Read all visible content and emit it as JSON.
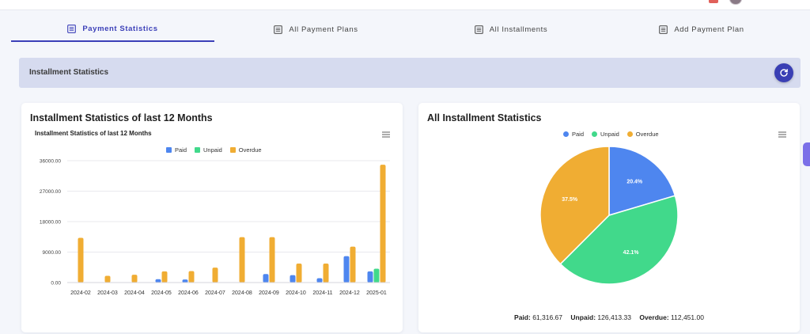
{
  "tabs": [
    {
      "label": "Payment Statistics",
      "active": true,
      "icon": "list-icon"
    },
    {
      "label": "All Payment Plans",
      "active": false,
      "icon": "list-icon"
    },
    {
      "label": "All Installments",
      "active": false,
      "icon": "list-icon"
    },
    {
      "label": "Add Payment Plan",
      "active": false,
      "icon": "list-icon"
    }
  ],
  "section": {
    "title": "Installment Statistics",
    "refresh_icon": "refresh-icon"
  },
  "bar_card": {
    "title": "Installment Statistics of last 12 Months"
  },
  "pie_card": {
    "title": "All Installment Statistics"
  },
  "totals": {
    "paid_label": "Paid:",
    "paid_value": "61,316.67",
    "unpaid_label": "Unpaid:",
    "unpaid_value": "126,413.33",
    "overdue_label": "Overdue:",
    "overdue_value": "112,451.00"
  },
  "colors": {
    "paid": "#4e86ef",
    "unpaid": "#41d98b",
    "overdue": "#f0ad33",
    "accent": "#3b3fb8"
  },
  "chart_data": [
    {
      "type": "bar",
      "title": "Installment Statistics of last 12 Months",
      "categories": [
        "2024-02",
        "2024-03",
        "2024-04",
        "2024-05",
        "2024-06",
        "2024-07",
        "2024-08",
        "2024-09",
        "2024-10",
        "2024-11",
        "2024-12",
        "2025-01"
      ],
      "series": [
        {
          "name": "Paid",
          "values": [
            0,
            0,
            0,
            1000,
            900,
            0,
            0,
            2500,
            2200,
            1300,
            7800,
            3300
          ]
        },
        {
          "name": "Unpaid",
          "values": [
            0,
            0,
            0,
            0,
            0,
            0,
            0,
            0,
            0,
            0,
            0,
            4100
          ]
        },
        {
          "name": "Overdue",
          "values": [
            13200,
            2000,
            2300,
            3300,
            3400,
            4400,
            13400,
            13400,
            5600,
            5600,
            10600,
            34800
          ]
        }
      ],
      "yticks": [
        "0.00",
        "9000.00",
        "18000.00",
        "27000.00",
        "36000.00"
      ],
      "ylim": [
        0,
        36000
      ],
      "legend": "top-center",
      "grid": true
    },
    {
      "type": "pie",
      "title": "",
      "labels": [
        "Paid",
        "Unpaid",
        "Overdue"
      ],
      "values": [
        20.4,
        42.1,
        37.5
      ],
      "value_labels": [
        "20.4%",
        "42.1%",
        "37.5%"
      ],
      "legend": "top-center"
    }
  ]
}
